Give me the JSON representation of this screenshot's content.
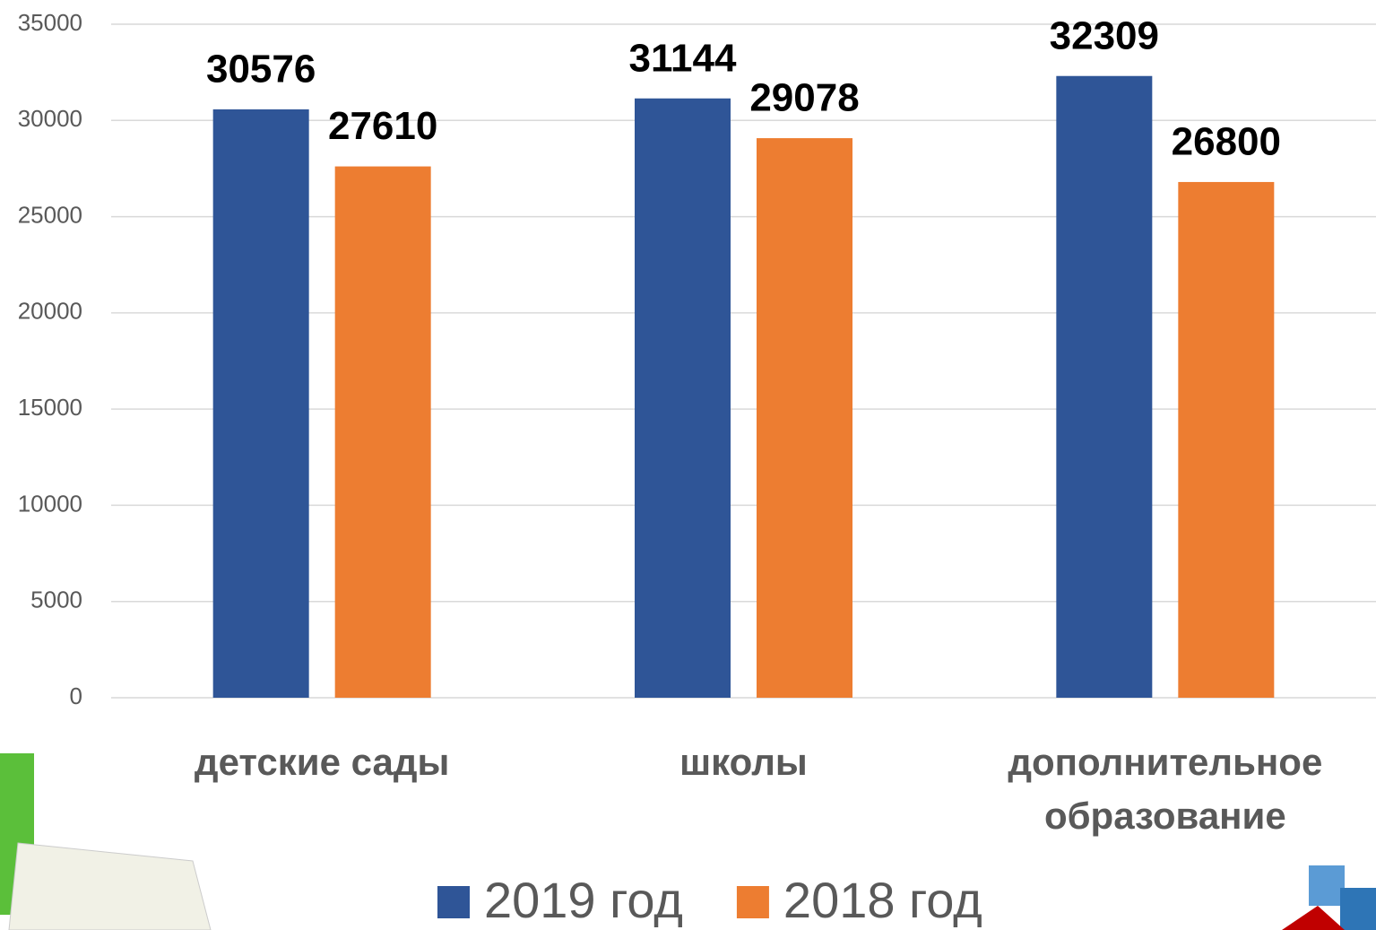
{
  "chart_data": {
    "type": "bar",
    "categories": [
      "детские сады",
      "школы",
      "дополнительное образование"
    ],
    "series": [
      {
        "name": "2019 год",
        "color": "#2f5597",
        "values": [
          30576,
          31144,
          32309
        ]
      },
      {
        "name": "2018 год",
        "color": "#ed7d31",
        "values": [
          27610,
          29078,
          26800
        ]
      }
    ],
    "ylim": [
      0,
      35000
    ],
    "yticks": [
      0,
      5000,
      10000,
      15000,
      20000,
      25000,
      30000,
      35000
    ],
    "grid": true,
    "legend": "bottom"
  }
}
